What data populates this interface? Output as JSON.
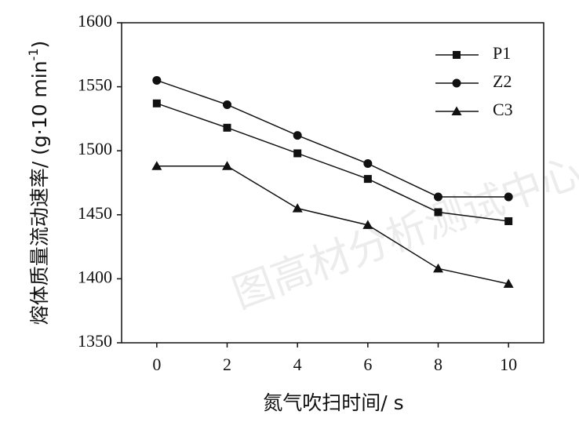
{
  "chart_data": {
    "type": "line",
    "x_label": "氮气吹扫时间/ s",
    "y_label": "熔体质量流动速率/ (g·10 min",
    "y_label_sup": "-1",
    "y_label_end": ")",
    "watermark": "图高材分析测试中心",
    "x": [
      0,
      2,
      4,
      6,
      8,
      10
    ],
    "xlim": [
      -1,
      11
    ],
    "xticks": [
      0,
      2,
      4,
      6,
      8,
      10
    ],
    "ylim": [
      1350,
      1600
    ],
    "yticks": [
      1350,
      1400,
      1450,
      1500,
      1550,
      1600
    ],
    "legend": "upper right",
    "series": [
      {
        "name": "P1",
        "color": "#111111",
        "marker": "square",
        "values": [
          1537,
          1518,
          1498,
          1478,
          1452,
          1445
        ]
      },
      {
        "name": "Z2",
        "color": "#111111",
        "marker": "circle",
        "values": [
          1555,
          1536,
          1512,
          1490,
          1464,
          1464
        ]
      },
      {
        "name": "C3",
        "color": "#111111",
        "marker": "triangle",
        "values": [
          1488,
          1488,
          1455,
          1442,
          1408,
          1396
        ]
      }
    ]
  }
}
